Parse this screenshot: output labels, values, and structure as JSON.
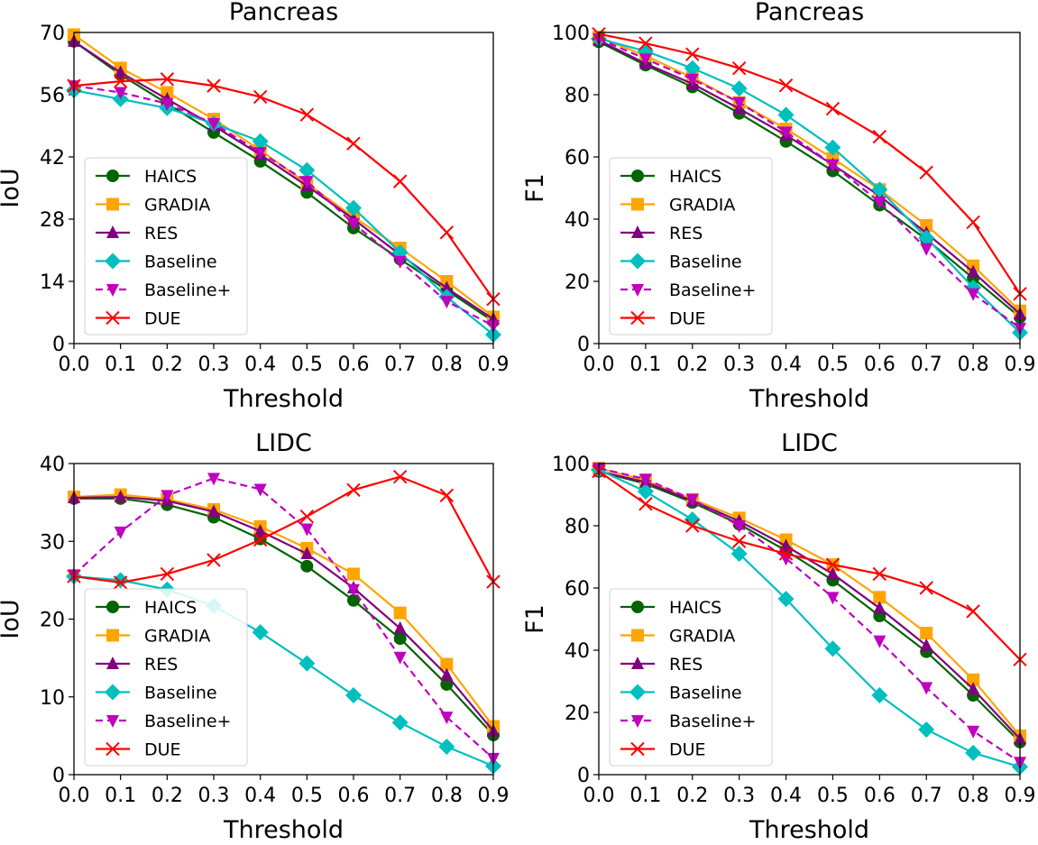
{
  "chart_data": [
    {
      "type": "line",
      "title": "Pancreas",
      "xlabel": "Threshold",
      "ylabel": "IoU",
      "x": [
        0.0,
        0.1,
        0.2,
        0.3,
        0.4,
        0.5,
        0.6,
        0.7,
        0.8,
        0.9
      ],
      "xticks": [
        "0.0",
        "0.1",
        "0.2",
        "0.3",
        "0.4",
        "0.5",
        "0.6",
        "0.7",
        "0.8",
        "0.9"
      ],
      "yticks": [
        0,
        14,
        28,
        42,
        56,
        70
      ],
      "ylim": [
        0,
        70
      ],
      "legend": "lower-left",
      "series": [
        {
          "name": "HAICS",
          "values": [
            68,
            60.5,
            54,
            47.5,
            41,
            34,
            26,
            19,
            12,
            5
          ]
        },
        {
          "name": "GRADIA",
          "values": [
            69.5,
            62,
            56.5,
            50.5,
            43.5,
            36,
            28.5,
            21.5,
            14,
            6
          ]
        },
        {
          "name": "RES",
          "values": [
            68,
            61,
            55,
            49,
            42.5,
            35.5,
            28,
            20,
            12.5,
            5.5
          ]
        },
        {
          "name": "Baseline",
          "values": [
            57,
            55,
            53,
            49.5,
            45.5,
            39,
            30.5,
            20.5,
            10.5,
            2
          ]
        },
        {
          "name": "Baseline+",
          "values": [
            58,
            56.5,
            54,
            49.5,
            43,
            36.5,
            27,
            18.5,
            9.5,
            4
          ]
        },
        {
          "name": "DUE",
          "values": [
            58,
            59,
            59.5,
            58,
            55.5,
            51.5,
            45,
            36.5,
            25,
            10
          ]
        }
      ]
    },
    {
      "type": "line",
      "title": "Pancreas",
      "xlabel": "Threshold",
      "ylabel": "F1",
      "x": [
        0.0,
        0.1,
        0.2,
        0.3,
        0.4,
        0.5,
        0.6,
        0.7,
        0.8,
        0.9
      ],
      "xticks": [
        "0.0",
        "0.1",
        "0.2",
        "0.3",
        "0.4",
        "0.5",
        "0.6",
        "0.7",
        "0.8",
        "0.9"
      ],
      "yticks": [
        0,
        20,
        40,
        60,
        80,
        100
      ],
      "ylim": [
        0,
        100
      ],
      "legend": "lower-left",
      "series": [
        {
          "name": "HAICS",
          "values": [
            97,
            89.5,
            82.5,
            74,
            65,
            55.5,
            44.5,
            33.5,
            21,
            8.5
          ]
        },
        {
          "name": "GRADIA",
          "values": [
            98.5,
            92.5,
            85.5,
            77.5,
            69,
            59.5,
            49.5,
            38,
            25,
            10.5
          ]
        },
        {
          "name": "RES",
          "values": [
            97.5,
            90,
            83.5,
            75.5,
            67,
            57.5,
            47.5,
            35.5,
            23,
            9.5
          ]
        },
        {
          "name": "Baseline",
          "values": [
            98,
            94,
            88.5,
            82,
            73.5,
            63,
            49.5,
            34,
            18,
            3.5
          ]
        },
        {
          "name": "Baseline+",
          "values": [
            98,
            91.5,
            85,
            77.5,
            68,
            57.5,
            45.5,
            30.5,
            16,
            5
          ]
        },
        {
          "name": "DUE",
          "values": [
            99.5,
            96.5,
            93,
            88.5,
            83,
            75.5,
            66.5,
            55,
            39,
            16
          ]
        }
      ]
    },
    {
      "type": "line",
      "title": "LIDC",
      "xlabel": "Threshold",
      "ylabel": "IoU",
      "x": [
        0.0,
        0.1,
        0.2,
        0.3,
        0.4,
        0.5,
        0.6,
        0.7,
        0.8,
        0.9
      ],
      "xticks": [
        "0.0",
        "0.1",
        "0.2",
        "0.3",
        "0.4",
        "0.5",
        "0.6",
        "0.7",
        "0.8",
        "0.9"
      ],
      "yticks": [
        0,
        10,
        20,
        30,
        40
      ],
      "ylim": [
        0,
        40
      ],
      "legend": "lower-left",
      "series": [
        {
          "name": "HAICS",
          "values": [
            35.5,
            35.5,
            34.7,
            33.1,
            30.3,
            26.8,
            22.4,
            17.5,
            11.6,
            5.1
          ]
        },
        {
          "name": "GRADIA",
          "values": [
            35.7,
            36,
            35.4,
            34.1,
            31.9,
            29.1,
            25.8,
            20.8,
            14.2,
            6.2
          ]
        },
        {
          "name": "RES",
          "values": [
            35.6,
            35.7,
            35.2,
            33.8,
            31.3,
            28.4,
            24,
            18.8,
            12.8,
            5.6
          ]
        },
        {
          "name": "Baseline",
          "values": [
            25.5,
            25,
            23.8,
            21.7,
            18.3,
            14.3,
            10.2,
            6.7,
            3.6,
            1.1
          ]
        },
        {
          "name": "Baseline+",
          "values": [
            25.7,
            31.2,
            35.9,
            38.1,
            36.7,
            31.6,
            23.8,
            15.1,
            7.4,
            2.1
          ]
        },
        {
          "name": "DUE",
          "values": [
            25.5,
            24.7,
            25.8,
            27.6,
            30.2,
            33.2,
            36.6,
            38.3,
            35.9,
            24.8
          ]
        }
      ]
    },
    {
      "type": "line",
      "title": "LIDC",
      "xlabel": "Threshold",
      "ylabel": "F1",
      "x": [
        0.0,
        0.1,
        0.2,
        0.3,
        0.4,
        0.5,
        0.6,
        0.7,
        0.8,
        0.9
      ],
      "xticks": [
        "0.0",
        "0.1",
        "0.2",
        "0.3",
        "0.4",
        "0.5",
        "0.6",
        "0.7",
        "0.8",
        "0.9"
      ],
      "yticks": [
        0,
        20,
        40,
        60,
        80,
        100
      ],
      "ylim": [
        0,
        100
      ],
      "legend": "lower-left",
      "series": [
        {
          "name": "HAICS",
          "values": [
            97.5,
            93.5,
            87.5,
            80.5,
            72,
            62.5,
            51,
            39.5,
            25.5,
            10.5
          ]
        },
        {
          "name": "GRADIA",
          "values": [
            98.5,
            94.5,
            88.5,
            82.5,
            75.5,
            67.5,
            57,
            45.5,
            30.5,
            12.5
          ]
        },
        {
          "name": "RES",
          "values": [
            97.5,
            94,
            88,
            81.5,
            73.5,
            64.5,
            53.5,
            41.5,
            27.5,
            11.5
          ]
        },
        {
          "name": "Baseline",
          "values": [
            98,
            91,
            82,
            71,
            56.5,
            40.5,
            25.5,
            14.5,
            7,
            2.5
          ]
        },
        {
          "name": "Baseline+",
          "values": [
            98.5,
            95,
            88.5,
            80,
            69.5,
            57,
            43,
            28,
            14,
            4
          ]
        },
        {
          "name": "DUE",
          "values": [
            97.5,
            87,
            80,
            75,
            71,
            67.5,
            64.5,
            60,
            52.5,
            37
          ]
        }
      ]
    }
  ],
  "styles": {
    "HAICS": {
      "color": "#006400",
      "marker": "circle",
      "dash": false
    },
    "GRADIA": {
      "color": "#ffa500",
      "marker": "square",
      "dash": false
    },
    "RES": {
      "color": "#800080",
      "marker": "triangle-up",
      "dash": false
    },
    "Baseline": {
      "color": "#00bfbf",
      "marker": "diamond",
      "dash": false
    },
    "Baseline+": {
      "color": "#bf00bf",
      "marker": "triangle-down",
      "dash": true
    },
    "DUE": {
      "color": "#ff0000",
      "marker": "x",
      "dash": false
    }
  }
}
